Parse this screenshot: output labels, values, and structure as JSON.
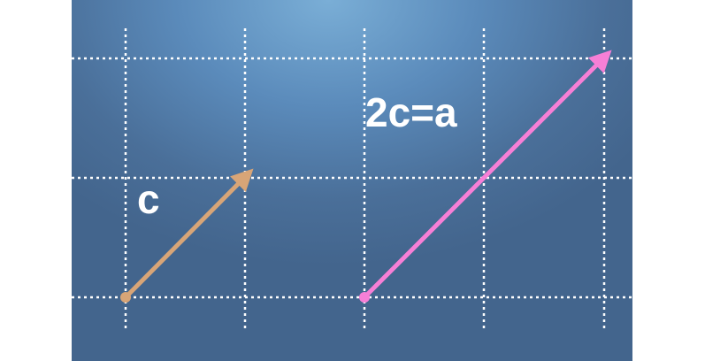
{
  "labels": {
    "vector_c": "c",
    "vector_2c": "2c=a"
  },
  "colors": {
    "grid": "#ffffff",
    "vector_c": "#d8a577",
    "vector_2c": "#f77fd6"
  }
}
